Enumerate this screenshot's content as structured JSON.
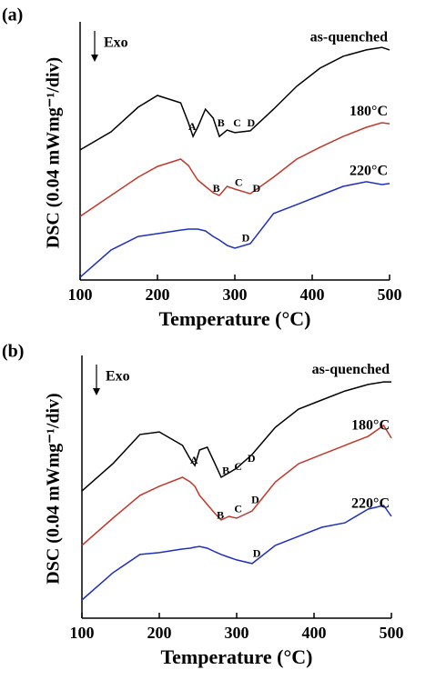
{
  "chart_data": [
    {
      "type": "line",
      "panel_label": "(a)",
      "xlabel": "Temperature (°C)",
      "ylabel": "DSC (0.04 mWmg⁻¹/div)",
      "exo_label": "Exo",
      "x": [
        100,
        140,
        175,
        200,
        230,
        240,
        246,
        252,
        262,
        272,
        280,
        290,
        300,
        320,
        350,
        380,
        410,
        440,
        470,
        490,
        500
      ],
      "xlim": [
        100,
        500
      ],
      "xticks": [
        100,
        200,
        300,
        400,
        500
      ],
      "ylim": [
        0,
        10
      ],
      "series": [
        {
          "name": "as-quenched",
          "color": "#000000",
          "values": [
            5.11,
            5.82,
            6.79,
            7.25,
            6.96,
            6.18,
            5.64,
            6.0,
            6.71,
            6.36,
            5.64,
            5.89,
            5.79,
            5.86,
            6.71,
            7.61,
            8.32,
            8.79,
            9.04,
            9.14,
            9.04
          ]
        },
        {
          "name": "180°C",
          "color": "#c0392b",
          "values": [
            2.5,
            3.32,
            4.04,
            4.46,
            4.75,
            4.5,
            4.21,
            3.93,
            3.68,
            3.43,
            3.32,
            3.68,
            3.57,
            3.39,
            4.04,
            4.75,
            5.21,
            5.64,
            6.0,
            6.18,
            6.14
          ]
        },
        {
          "name": "220°C",
          "color": "#1f2fbf",
          "values": [
            0.11,
            1.18,
            1.71,
            1.82,
            1.96,
            2.0,
            2.0,
            2.0,
            1.93,
            1.71,
            1.57,
            1.36,
            1.25,
            1.43,
            2.61,
            2.96,
            3.32,
            3.68,
            3.86,
            3.75,
            3.79
          ]
        }
      ],
      "annotations": [
        {
          "text": "A",
          "x": 245,
          "y": 6.0
        },
        {
          "text": "B",
          "x": 282,
          "y": 6.14
        },
        {
          "text": "C",
          "x": 303,
          "y": 6.14
        },
        {
          "text": "D",
          "x": 321,
          "y": 6.14
        },
        {
          "text": "B",
          "x": 276,
          "y": 3.57
        },
        {
          "text": "C",
          "x": 305,
          "y": 3.79
        },
        {
          "text": "D",
          "x": 328,
          "y": 3.57
        },
        {
          "text": "D",
          "x": 314,
          "y": 1.61
        }
      ]
    },
    {
      "type": "line",
      "panel_label": "(b)",
      "xlabel": "Temperature (°C)",
      "ylabel": "DSC (0.04 mWmg⁻¹/div)",
      "exo_label": "Exo",
      "x": [
        100,
        140,
        175,
        200,
        230,
        240,
        246,
        252,
        262,
        272,
        280,
        290,
        300,
        320,
        350,
        380,
        410,
        440,
        470,
        490,
        500
      ],
      "xlim": [
        100,
        500
      ],
      "xticks": [
        100,
        200,
        300,
        400,
        500
      ],
      "ylim": [
        0,
        10
      ],
      "series": [
        {
          "name": "as-quenched",
          "color": "#000000",
          "values": [
            4.91,
            5.96,
            7.09,
            7.19,
            6.67,
            6.14,
            5.89,
            6.49,
            6.6,
            5.96,
            5.44,
            5.61,
            5.79,
            6.32,
            7.37,
            8.07,
            8.42,
            8.77,
            9.02,
            9.12,
            9.12
          ]
        },
        {
          "name": "180°C",
          "color": "#c0392b",
          "values": [
            2.81,
            3.86,
            4.74,
            5.09,
            5.44,
            5.26,
            5.09,
            4.74,
            4.39,
            4.04,
            3.79,
            3.93,
            3.86,
            4.14,
            5.26,
            5.96,
            6.32,
            6.67,
            7.02,
            7.44,
            6.95
          ]
        },
        {
          "name": "220°C",
          "color": "#1f2fbf",
          "values": [
            0.7,
            1.75,
            2.46,
            2.53,
            2.67,
            2.7,
            2.74,
            2.77,
            2.7,
            2.56,
            2.46,
            2.35,
            2.25,
            2.11,
            2.81,
            3.16,
            3.51,
            3.68,
            4.21,
            4.35,
            3.93
          ]
        }
      ],
      "annotations": [
        {
          "text": "A",
          "x": 245,
          "y": 6.07
        },
        {
          "text": "B",
          "x": 286,
          "y": 5.65
        },
        {
          "text": "C",
          "x": 302,
          "y": 5.82
        },
        {
          "text": "D",
          "x": 319,
          "y": 6.14
        },
        {
          "text": "B",
          "x": 279,
          "y": 3.93
        },
        {
          "text": "C",
          "x": 302,
          "y": 4.18
        },
        {
          "text": "D",
          "x": 324,
          "y": 4.53
        },
        {
          "text": "D",
          "x": 326,
          "y": 2.46
        }
      ]
    }
  ]
}
